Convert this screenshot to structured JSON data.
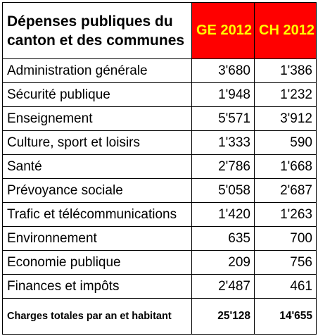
{
  "colors": {
    "header_highlight": "#ff0000",
    "header_highlight_text": "#ffff00",
    "text": "#000000",
    "border": "#000000"
  },
  "header": {
    "title_line1": "Dépenses publiques du",
    "title_line2": "canton et des communes",
    "col_ge": "GE 2012",
    "col_ch": "CH 2012"
  },
  "rows": [
    {
      "label": "Administration générale",
      "ge": "3'680",
      "ch": "1'386"
    },
    {
      "label": "Sécurité publique",
      "ge": "1'948",
      "ch": "1'232"
    },
    {
      "label": "Enseignement",
      "ge": "5'571",
      "ch": "3'912"
    },
    {
      "label": "Culture, sport et loisirs",
      "ge": "1'333",
      "ch": "590"
    },
    {
      "label": "Santé",
      "ge": "2'786",
      "ch": "1'668"
    },
    {
      "label": "Prévoyance sociale",
      "ge": "5'058",
      "ch": "2'687"
    },
    {
      "label": "Trafic et télécommunications",
      "ge": "1'420",
      "ch": "1'263"
    },
    {
      "label": "Environnement",
      "ge": "635",
      "ch": "700"
    },
    {
      "label": "Economie publique",
      "ge": "209",
      "ch": "756"
    },
    {
      "label": "Finances et impôts",
      "ge": "2'487",
      "ch": "461"
    }
  ],
  "total": {
    "label": "Charges totales par an et habitant",
    "ge": "25'128",
    "ch": "14'655"
  }
}
